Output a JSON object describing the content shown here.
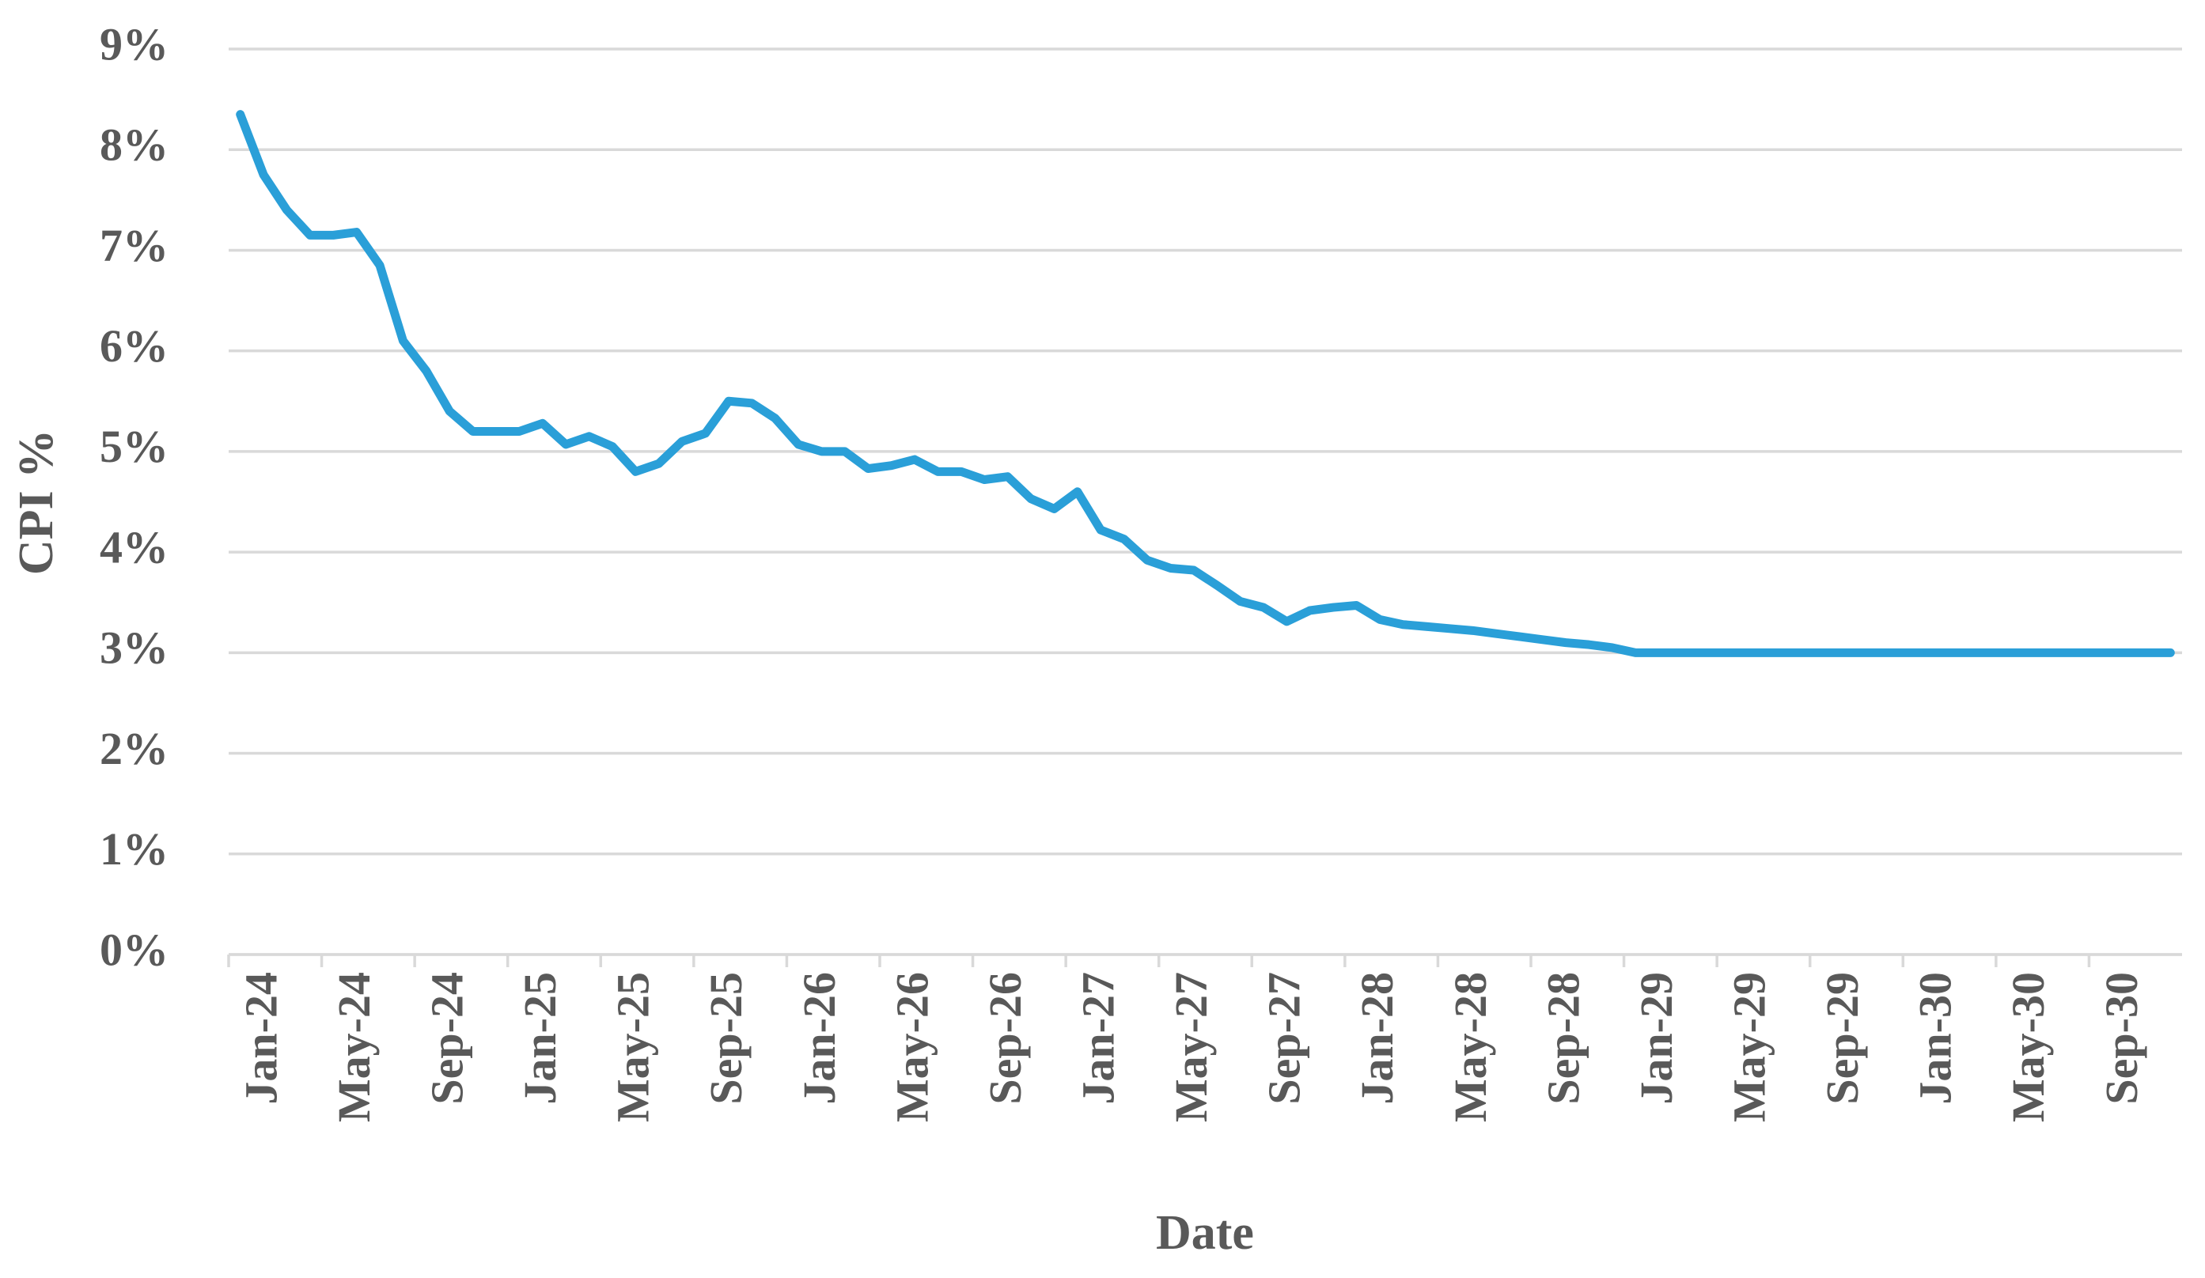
{
  "chart_data": {
    "type": "line",
    "x_label": "Date",
    "y_label": "CPI %",
    "categories": [
      "Jan-24",
      null,
      null,
      null,
      "May-24",
      null,
      null,
      null,
      "Sep-24",
      null,
      null,
      null,
      "Jan-25",
      null,
      null,
      null,
      "May-25",
      null,
      null,
      null,
      "Sep-25",
      null,
      null,
      null,
      "Jan-26",
      null,
      null,
      null,
      "May-26",
      null,
      null,
      null,
      "Sep-26",
      null,
      null,
      null,
      "Jan-27",
      null,
      null,
      null,
      "May-27",
      null,
      null,
      null,
      "Sep-27",
      null,
      null,
      null,
      "Jan-28",
      null,
      null,
      null,
      "May-28",
      null,
      null,
      null,
      "Sep-28",
      null,
      null,
      null,
      "Jan-29",
      null,
      null,
      null,
      "May-29",
      null,
      null,
      null,
      "Sep-29",
      null,
      null,
      null,
      "Jan-30",
      null,
      null,
      null,
      "May-30",
      null,
      null,
      null,
      "Sep-30",
      null,
      null,
      null
    ],
    "series": [
      {
        "name": "CPI",
        "color": "#2a9fd8",
        "values": [
          8.35,
          7.75,
          7.4,
          7.15,
          7.15,
          7.18,
          6.85,
          6.1,
          5.8,
          5.4,
          5.2,
          5.2,
          5.2,
          5.28,
          5.07,
          5.15,
          5.05,
          4.8,
          4.88,
          5.1,
          5.18,
          5.5,
          5.48,
          5.33,
          5.07,
          5.0,
          5.0,
          4.83,
          4.86,
          4.92,
          4.8,
          4.8,
          4.72,
          4.75,
          4.53,
          4.43,
          4.6,
          4.22,
          4.13,
          3.92,
          3.84,
          3.82,
          3.67,
          3.51,
          3.45,
          3.31,
          3.42,
          3.45,
          3.47,
          3.33,
          3.28,
          3.26,
          3.24,
          3.22,
          3.19,
          3.16,
          3.13,
          3.1,
          3.08,
          3.05,
          3.0,
          3.0,
          3.0,
          3.0,
          3.0,
          3.0,
          3.0,
          3.0,
          3.0,
          3.0,
          3.0,
          3.0,
          3.0,
          3.0,
          3.0,
          3.0,
          3.0,
          3.0,
          3.0,
          3.0,
          3.0,
          3.0,
          3.0,
          3.0
        ]
      }
    ],
    "ylim": [
      0,
      9
    ],
    "yticks": [
      {
        "value": 0,
        "label": "0%"
      },
      {
        "value": 1,
        "label": "1%"
      },
      {
        "value": 2,
        "label": "2%"
      },
      {
        "value": 3,
        "label": "3%"
      },
      {
        "value": 4,
        "label": "4%"
      },
      {
        "value": 5,
        "label": "5%"
      },
      {
        "value": 6,
        "label": "6%"
      },
      {
        "value": 7,
        "label": "7%"
      },
      {
        "value": 8,
        "label": "8%"
      },
      {
        "value": 9,
        "label": "9%"
      }
    ],
    "grid": true
  }
}
